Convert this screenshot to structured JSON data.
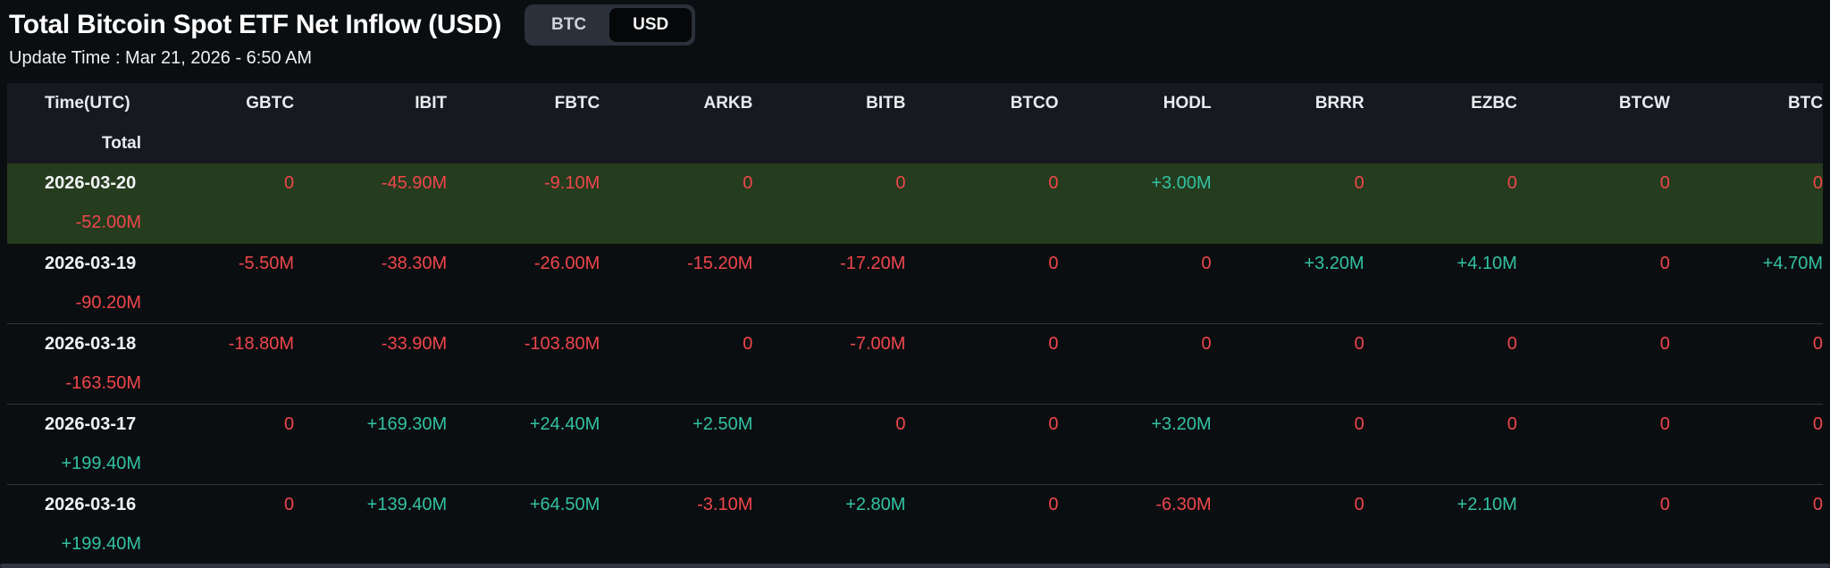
{
  "header": {
    "title": "Total Bitcoin Spot ETF Net Inflow (USD)",
    "toggle": {
      "options": [
        "BTC",
        "USD"
      ],
      "selected": "USD"
    },
    "update_time": "Update Time : Mar 21, 2026 - 6:50 AM"
  },
  "table": {
    "columns": [
      "Time(UTC)",
      "GBTC",
      "IBIT",
      "FBTC",
      "ARKB",
      "BITB",
      "BTCO",
      "HODL",
      "BRRR",
      "EZBC",
      "BTCW",
      "BTC",
      "Total"
    ],
    "rows": [
      {
        "date": "2026-03-20",
        "highlighted": true,
        "values": [
          "0",
          "-45.90M",
          "-9.10M",
          "0",
          "0",
          "0",
          "+3.00M",
          "0",
          "0",
          "0",
          "0",
          "-52.00M"
        ]
      },
      {
        "date": "2026-03-19",
        "highlighted": false,
        "values": [
          "-5.50M",
          "-38.30M",
          "-26.00M",
          "-15.20M",
          "-17.20M",
          "0",
          "0",
          "+3.20M",
          "+4.10M",
          "0",
          "+4.70M",
          "-90.20M"
        ]
      },
      {
        "date": "2026-03-18",
        "highlighted": false,
        "values": [
          "-18.80M",
          "-33.90M",
          "-103.80M",
          "0",
          "-7.00M",
          "0",
          "0",
          "0",
          "0",
          "0",
          "0",
          "-163.50M"
        ]
      },
      {
        "date": "2026-03-17",
        "highlighted": false,
        "values": [
          "0",
          "+169.30M",
          "+24.40M",
          "+2.50M",
          "0",
          "0",
          "+3.20M",
          "0",
          "0",
          "0",
          "0",
          "+199.40M"
        ]
      },
      {
        "date": "2026-03-16",
        "highlighted": false,
        "values": [
          "0",
          "+139.40M",
          "+64.50M",
          "-3.10M",
          "+2.80M",
          "0",
          "-6.30M",
          "0",
          "+2.10M",
          "0",
          "0",
          "+199.40M"
        ]
      }
    ]
  },
  "colors": {
    "positive": "#32c2a2",
    "negative": "#ee464b",
    "highlight_row_bg": "#253c1e",
    "header_row_bg": "#161a20",
    "page_bg": "#0b0e11"
  }
}
